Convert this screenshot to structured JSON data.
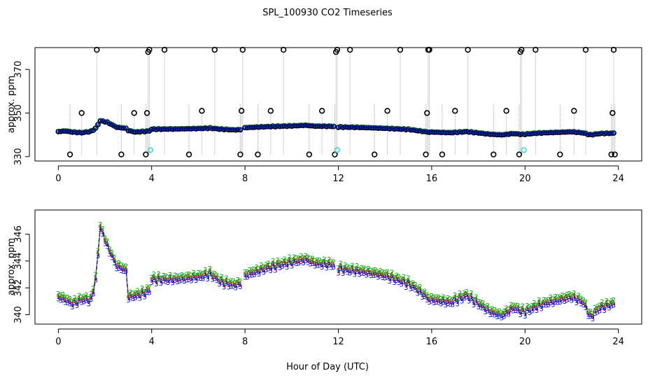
{
  "title": "SPL_100930  CO2 Timeseries",
  "colors": {
    "raw_line": "#a8a8a8",
    "raw_points": "#000000",
    "s1": "#cc0000",
    "s2": "#00aa00",
    "s3": "#0000cc",
    "calib": "#38d8d8"
  },
  "chart_data": [
    {
      "type": "scatter",
      "panel": "top",
      "xlabel": "",
      "ylabel": "approx. ppm",
      "xlim": [
        -1,
        25
      ],
      "ylim": [
        328,
        380
      ],
      "xticks": [
        0,
        4,
        8,
        12,
        16,
        20,
        24
      ],
      "yticks": [
        330,
        350,
        370
      ],
      "baseline_segments": [
        {
          "x": [
            0.0,
            0.3,
            0.6,
            1.0,
            1.4,
            1.6,
            1.8,
            2.1,
            2.5,
            2.9,
            3.0,
            3.3,
            3.7,
            3.9
          ],
          "y": [
            341.5,
            341.8,
            341.3,
            341.0,
            341.6,
            343.0,
            346.5,
            345.8,
            343.5,
            343.0,
            342.0,
            341.3,
            341.6,
            341.8
          ]
        },
        {
          "x": [
            4.0,
            5.0,
            6.0,
            6.5,
            7.0,
            7.5,
            7.85
          ],
          "y": [
            342.6,
            342.7,
            342.9,
            343.1,
            342.6,
            342.3,
            342.4
          ]
        },
        {
          "x": [
            8.0,
            9.0,
            10.0,
            10.6,
            11.0,
            11.8
          ],
          "y": [
            343.3,
            343.8,
            344.1,
            344.4,
            344.0,
            343.9
          ]
        },
        {
          "x": [
            12.0,
            13.0,
            14.0,
            15.0,
            15.5,
            15.9
          ],
          "y": [
            343.6,
            343.4,
            343.0,
            342.5,
            341.8,
            341.2
          ]
        },
        {
          "x": [
            16.0,
            16.8,
            17.5,
            18.0,
            18.5,
            19.0,
            19.5,
            19.9
          ],
          "y": [
            341.3,
            341.0,
            341.5,
            340.9,
            340.3,
            340.0,
            340.6,
            340.2
          ]
        },
        {
          "x": [
            20.0,
            20.5,
            21.0,
            21.5,
            22.0,
            22.5,
            22.8,
            23.2,
            23.8
          ],
          "y": [
            340.3,
            340.8,
            341.0,
            341.2,
            341.4,
            340.9,
            340.0,
            340.6,
            340.8
          ]
        }
      ],
      "spike_times": [
        0.5,
        1.0,
        1.65,
        2.7,
        3.25,
        3.75,
        3.8,
        3.85,
        3.9,
        4.55,
        5.6,
        6.15,
        6.7,
        7.8,
        7.85,
        7.9,
        8.55,
        9.1,
        9.65,
        10.75,
        11.3,
        11.85,
        11.9,
        11.95,
        12.5,
        13.55,
        14.1,
        14.65,
        15.75,
        15.8,
        15.85,
        15.9,
        16.45,
        17.0,
        17.55,
        18.65,
        19.2,
        19.75,
        19.8,
        19.85,
        20.45,
        21.5,
        22.1,
        22.6,
        23.7,
        23.75,
        23.8,
        23.85
      ],
      "spike_values": [
        331,
        350,
        379,
        331,
        350,
        331,
        350,
        378,
        379,
        379,
        331,
        351,
        379,
        331,
        351,
        379,
        331,
        351,
        379,
        331,
        351,
        331,
        378,
        379,
        379,
        331,
        351,
        379,
        331,
        350,
        379,
        379,
        331,
        351,
        379,
        331,
        351,
        331,
        378,
        379,
        379,
        331,
        351,
        379,
        331,
        350,
        379,
        331
      ],
      "calibration_points": [
        {
          "x": 3.95,
          "y": 333
        },
        {
          "x": 11.95,
          "y": 333
        },
        {
          "x": 19.95,
          "y": 333
        }
      ]
    },
    {
      "type": "line",
      "panel": "bottom",
      "xlabel": "Hour of Day (UTC)",
      "ylabel": "approx. ppm",
      "xlim": [
        -1,
        25
      ],
      "ylim": [
        339.3,
        347.8
      ],
      "xticks": [
        0,
        4,
        8,
        12,
        16,
        20,
        24
      ],
      "yticks": [
        340,
        342,
        344,
        346
      ],
      "series": [
        {
          "name": "1",
          "offset": 0.2
        },
        {
          "name": "2",
          "offset": 0.4
        },
        {
          "name": "3",
          "offset": 0.0
        }
      ],
      "segments": [
        {
          "x": [
            0.0,
            0.3,
            0.6,
            1.0,
            1.4,
            1.6,
            1.8,
            2.1,
            2.5,
            2.9,
            3.0,
            3.3,
            3.7,
            3.9
          ],
          "y": [
            341.2,
            341.0,
            340.7,
            341.0,
            341.0,
            342.5,
            346.4,
            345.0,
            343.5,
            343.2,
            341.2,
            341.3,
            341.5,
            341.7
          ]
        },
        {
          "x": [
            4.0,
            5.0,
            6.0,
            6.5,
            7.0,
            7.5,
            7.85
          ],
          "y": [
            342.5,
            342.5,
            342.7,
            342.9,
            342.3,
            342.1,
            342.2
          ]
        },
        {
          "x": [
            8.0,
            9.0,
            10.0,
            10.6,
            11.0,
            11.8
          ],
          "y": [
            342.8,
            343.4,
            343.8,
            344.0,
            343.7,
            343.6
          ]
        },
        {
          "x": [
            12.0,
            13.0,
            14.0,
            15.0,
            15.5,
            15.9
          ],
          "y": [
            343.3,
            343.1,
            342.8,
            342.2,
            341.6,
            341.0
          ]
        },
        {
          "x": [
            16.0,
            16.8,
            17.5,
            18.0,
            18.5,
            19.0,
            19.5,
            19.9
          ],
          "y": [
            341.0,
            340.8,
            341.3,
            340.7,
            340.1,
            339.8,
            340.4,
            340.1
          ]
        },
        {
          "x": [
            20.0,
            20.5,
            21.0,
            21.5,
            22.0,
            22.5,
            22.8,
            23.2,
            23.8
          ],
          "y": [
            340.1,
            340.5,
            340.8,
            341.0,
            341.2,
            340.8,
            339.7,
            340.4,
            340.7
          ]
        }
      ]
    }
  ]
}
